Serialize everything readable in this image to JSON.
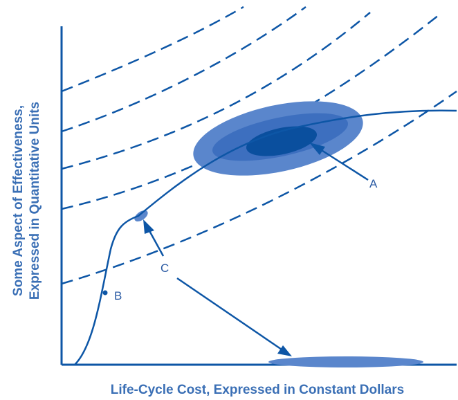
{
  "diagram": {
    "x_axis_label": "Life-Cycle Cost, Expressed in Constant Dollars",
    "y_axis_label_line1": "Some Aspect of Effectiveness,",
    "y_axis_label_line2": "Expressed in Quantitative Units",
    "labels": {
      "A": "A",
      "B": "B",
      "C": "C"
    },
    "colors": {
      "line": "#0d56a6",
      "region_outer": "#5a86cc",
      "region_middle": "#3d6fbf",
      "region_inner": "#0a4f9e",
      "text": "#2a5aa3"
    }
  }
}
